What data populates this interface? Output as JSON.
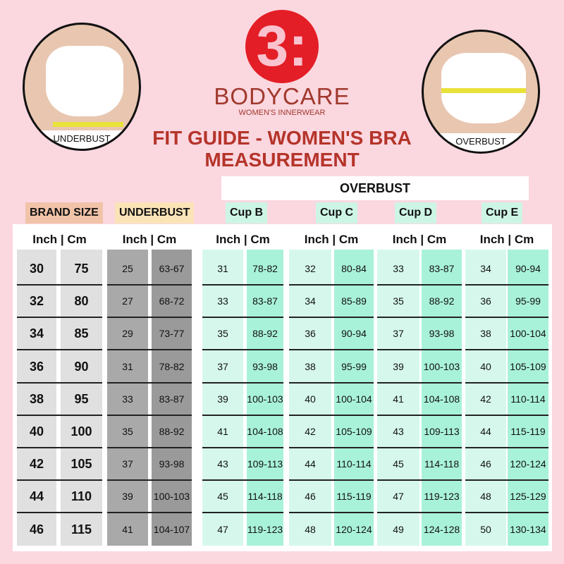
{
  "logo": {
    "mark": "3:",
    "brand": "BODYCARE",
    "tagline": "WOMEN'S INNERWEAR"
  },
  "title": "FIT GUIDE - WOMEN'S BRA MEASUREMENT",
  "photos": {
    "left_label": "UNDERBUST",
    "right_label": "OVERBUST"
  },
  "overbust_header": "OVERBUST",
  "groups": [
    {
      "label": "BRAND SIZE",
      "color": "#f1c3a8"
    },
    {
      "label": "UNDERBUST",
      "color": "#fbe3b8"
    },
    {
      "label": "Cup B",
      "color": "#cdf5e6"
    },
    {
      "label": "Cup C",
      "color": "#cdf5e6"
    },
    {
      "label": "Cup D",
      "color": "#cdf5e6"
    },
    {
      "label": "Cup E",
      "color": "#cdf5e6"
    }
  ],
  "subheader": "Inch  |  Cm",
  "rows": [
    {
      "brand": [
        "30",
        "75"
      ],
      "underbust": [
        "25",
        "63-67"
      ],
      "cup_b": [
        "31",
        "78-82"
      ],
      "cup_c": [
        "32",
        "80-84"
      ],
      "cup_d": [
        "33",
        "83-87"
      ],
      "cup_e": [
        "34",
        "90-94"
      ]
    },
    {
      "brand": [
        "32",
        "80"
      ],
      "underbust": [
        "27",
        "68-72"
      ],
      "cup_b": [
        "33",
        "83-87"
      ],
      "cup_c": [
        "34",
        "85-89"
      ],
      "cup_d": [
        "35",
        "88-92"
      ],
      "cup_e": [
        "36",
        "95-99"
      ]
    },
    {
      "brand": [
        "34",
        "85"
      ],
      "underbust": [
        "29",
        "73-77"
      ],
      "cup_b": [
        "35",
        "88-92"
      ],
      "cup_c": [
        "36",
        "90-94"
      ],
      "cup_d": [
        "37",
        "93-98"
      ],
      "cup_e": [
        "38",
        "100-104"
      ]
    },
    {
      "brand": [
        "36",
        "90"
      ],
      "underbust": [
        "31",
        "78-82"
      ],
      "cup_b": [
        "37",
        "93-98"
      ],
      "cup_c": [
        "38",
        "95-99"
      ],
      "cup_d": [
        "39",
        "100-103"
      ],
      "cup_e": [
        "40",
        "105-109"
      ]
    },
    {
      "brand": [
        "38",
        "95"
      ],
      "underbust": [
        "33",
        "83-87"
      ],
      "cup_b": [
        "39",
        "100-103"
      ],
      "cup_c": [
        "40",
        "100-104"
      ],
      "cup_d": [
        "41",
        "104-108"
      ],
      "cup_e": [
        "42",
        "110-114"
      ]
    },
    {
      "brand": [
        "40",
        "100"
      ],
      "underbust": [
        "35",
        "88-92"
      ],
      "cup_b": [
        "41",
        "104-108"
      ],
      "cup_c": [
        "42",
        "105-109"
      ],
      "cup_d": [
        "43",
        "109-113"
      ],
      "cup_e": [
        "44",
        "115-119"
      ]
    },
    {
      "brand": [
        "42",
        "105"
      ],
      "underbust": [
        "37",
        "93-98"
      ],
      "cup_b": [
        "43",
        "109-113"
      ],
      "cup_c": [
        "44",
        "110-114"
      ],
      "cup_d": [
        "45",
        "114-118"
      ],
      "cup_e": [
        "46",
        "120-124"
      ]
    },
    {
      "brand": [
        "44",
        "110"
      ],
      "underbust": [
        "39",
        "100-103"
      ],
      "cup_b": [
        "45",
        "114-118"
      ],
      "cup_c": [
        "46",
        "115-119"
      ],
      "cup_d": [
        "47",
        "119-123"
      ],
      "cup_e": [
        "48",
        "125-129"
      ]
    },
    {
      "brand": [
        "46",
        "115"
      ],
      "underbust": [
        "41",
        "104-107"
      ],
      "cup_b": [
        "47",
        "119-123"
      ],
      "cup_c": [
        "48",
        "120-124"
      ],
      "cup_d": [
        "49",
        "124-128"
      ],
      "cup_e": [
        "50",
        "130-134"
      ]
    }
  ]
}
